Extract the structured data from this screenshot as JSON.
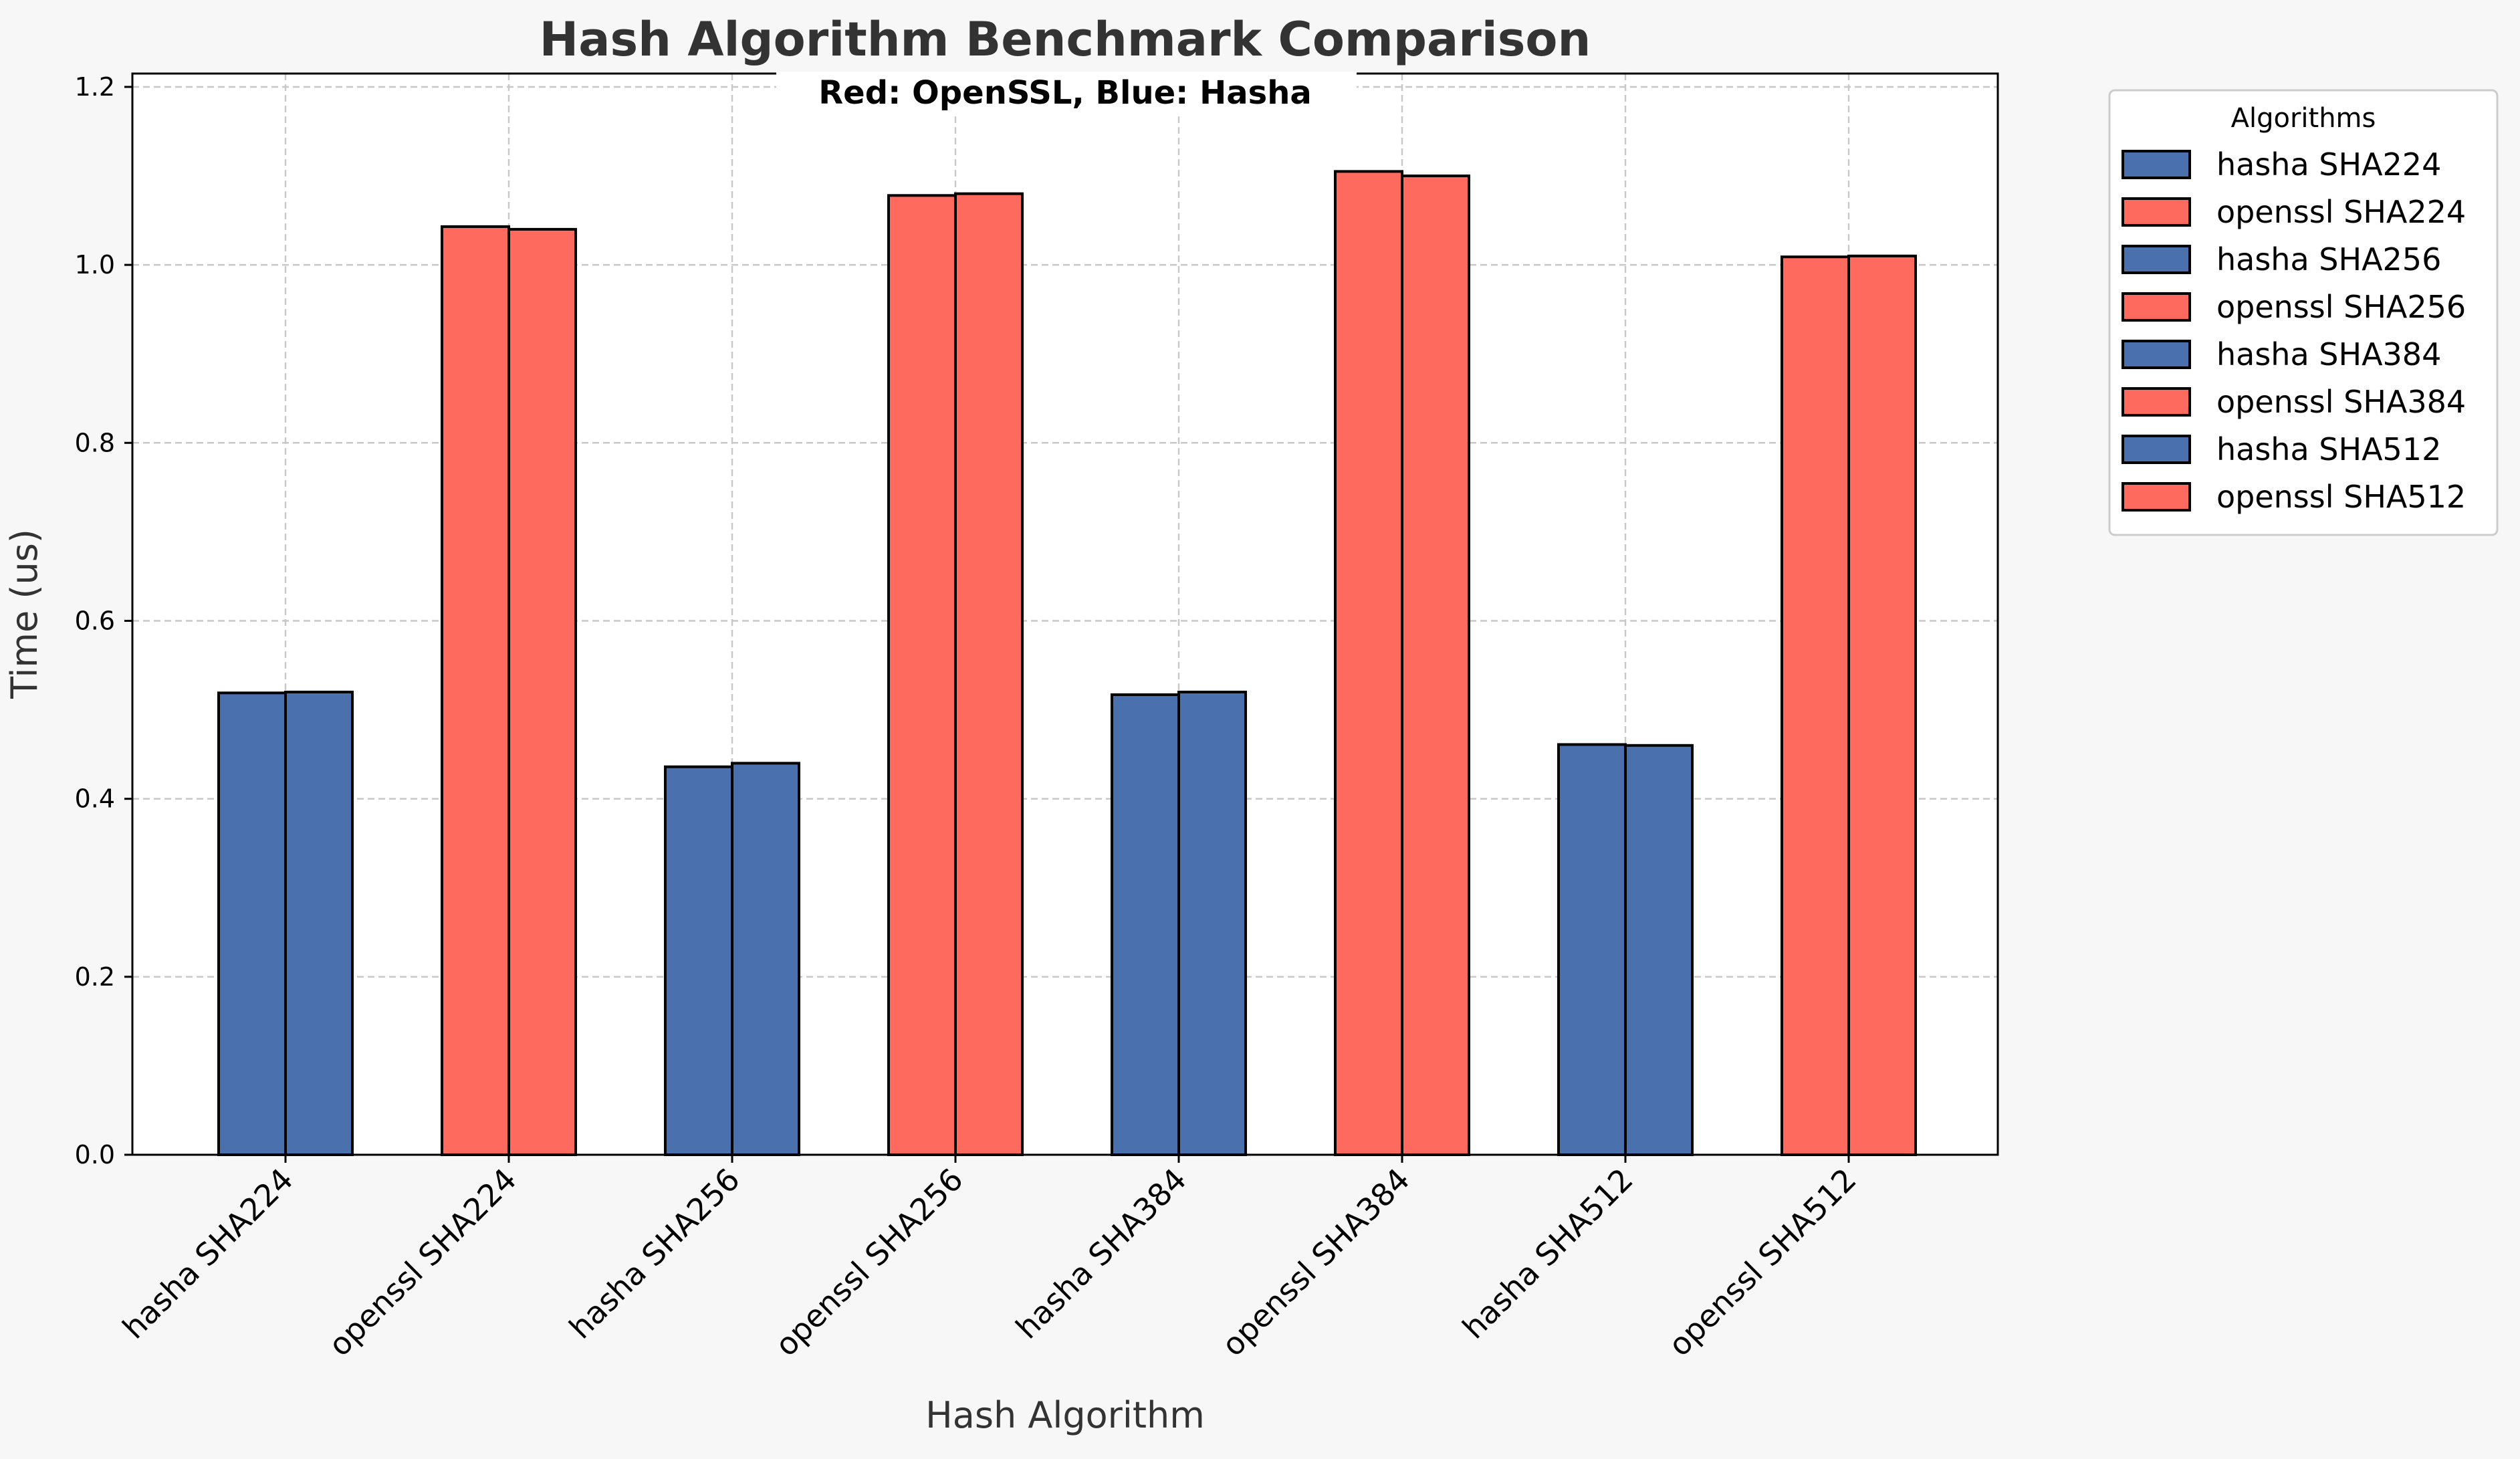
{
  "chart_data": {
    "type": "bar",
    "title": "Hash Algorithm Benchmark Comparison",
    "subtitle": "Red: OpenSSL, Blue: Hasha",
    "xlabel": "Hash Algorithm",
    "ylabel": "Time (us)",
    "ylim": [
      0,
      1.215
    ],
    "yticks": [
      "0.0",
      "0.2",
      "0.4",
      "0.6",
      "0.8",
      "1.0",
      "1.2"
    ],
    "grid": true,
    "legend_title": "Algorithms",
    "legend_position": "outside-top-right",
    "categories": [
      "hasha SHA224",
      "openssl SHA224",
      "hasha SHA256",
      "openssl SHA256",
      "hasha SHA384",
      "openssl SHA384",
      "hasha SHA512",
      "openssl SHA512"
    ],
    "series": [
      {
        "values": [
          0.519,
          1.043,
          0.436,
          1.078,
          0.517,
          1.105,
          0.461,
          1.009
        ]
      },
      {
        "values": [
          0.52,
          1.04,
          0.44,
          1.08,
          0.52,
          1.1,
          0.46,
          1.01
        ]
      }
    ],
    "bar_colors": [
      "#4a70ae",
      "#ff6a5e",
      "#4a70ae",
      "#ff6a5e",
      "#4a70ae",
      "#ff6a5e",
      "#4a70ae",
      "#ff6a5e"
    ],
    "legend": [
      {
        "label": "hasha SHA224",
        "color": "#4a70ae"
      },
      {
        "label": "openssl SHA224",
        "color": "#ff6a5e"
      },
      {
        "label": "hasha SHA256",
        "color": "#4a70ae"
      },
      {
        "label": "openssl SHA256",
        "color": "#ff6a5e"
      },
      {
        "label": "hasha SHA384",
        "color": "#4a70ae"
      },
      {
        "label": "openssl SHA384",
        "color": "#ff6a5e"
      },
      {
        "label": "hasha SHA512",
        "color": "#4a70ae"
      },
      {
        "label": "openssl SHA512",
        "color": "#ff6a5e"
      }
    ]
  }
}
